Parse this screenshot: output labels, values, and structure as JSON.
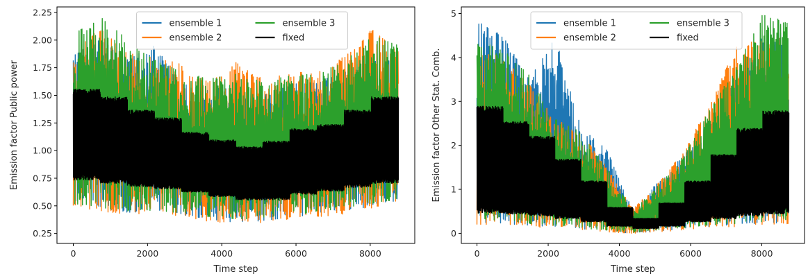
{
  "chart_data": [
    {
      "type": "line",
      "xlabel": "Time step",
      "ylabel": "Emission factor Public power",
      "xlim": [
        -440,
        9200
      ],
      "ylim": [
        0.16,
        2.3
      ],
      "xticks": [
        0,
        2000,
        4000,
        6000,
        8000
      ],
      "xtick_labels": [
        "0",
        "2000",
        "4000",
        "6000",
        "8000"
      ],
      "yticks": [
        0.25,
        0.5,
        0.75,
        1.0,
        1.25,
        1.5,
        1.75,
        2.0,
        2.25
      ],
      "ytick_labels": [
        "0.25",
        "0.50",
        "0.75",
        "1.00",
        "1.25",
        "1.50",
        "1.75",
        "2.00",
        "2.25"
      ],
      "grid": false,
      "legend": {
        "placement": "upper center",
        "columns": 2,
        "entries": [
          "ensemble 1",
          "ensemble 2",
          "ensemble 3",
          "fixed"
        ]
      },
      "series": [
        {
          "name": "ensemble 1",
          "color": "#1f77b4",
          "envelope": {
            "x": [
              0,
              730,
              1460,
              2190,
              2920,
              3650,
              4380,
              5110,
              5840,
              6570,
              7300,
              8030,
              8760
            ],
            "low": [
              0.5,
              0.48,
              0.44,
              0.45,
              0.42,
              0.38,
              0.35,
              0.36,
              0.4,
              0.42,
              0.44,
              0.5,
              0.55
            ],
            "high": [
              1.9,
              2.0,
              1.85,
              1.95,
              1.6,
              1.58,
              1.55,
              1.5,
              1.6,
              1.62,
              1.72,
              1.8,
              1.85
            ]
          }
        },
        {
          "name": "ensemble 2",
          "color": "#ff7f0e",
          "envelope": {
            "x": [
              0,
              730,
              1460,
              2190,
              2920,
              3650,
              4380,
              5110,
              5840,
              6570,
              7300,
              8030,
              8760
            ],
            "low": [
              0.5,
              0.45,
              0.42,
              0.44,
              0.4,
              0.36,
              0.33,
              0.35,
              0.38,
              0.4,
              0.42,
              0.48,
              0.54
            ],
            "high": [
              1.92,
              2.1,
              1.9,
              1.85,
              1.78,
              1.62,
              1.8,
              1.65,
              1.7,
              1.72,
              1.85,
              2.1,
              1.9
            ]
          }
        },
        {
          "name": "ensemble 3",
          "color": "#2ca02c",
          "envelope": {
            "x": [
              0,
              730,
              1460,
              2190,
              2920,
              3650,
              4380,
              5110,
              5840,
              6570,
              7300,
              8030,
              8760
            ],
            "low": [
              0.52,
              0.48,
              0.45,
              0.46,
              0.43,
              0.4,
              0.38,
              0.38,
              0.42,
              0.44,
              0.46,
              0.52,
              0.56
            ],
            "high": [
              2.05,
              2.22,
              2.0,
              1.82,
              1.72,
              1.65,
              1.7,
              1.62,
              1.68,
              1.7,
              1.8,
              2.05,
              1.95
            ]
          }
        },
        {
          "name": "fixed",
          "color": "#000000",
          "steps": {
            "x": [
              0,
              730,
              1460,
              2190,
              2920,
              3650,
              4380,
              5110,
              5840,
              6570,
              7300,
              8030,
              8760
            ],
            "low": [
              0.73,
              0.7,
              0.67,
              0.65,
              0.62,
              0.58,
              0.55,
              0.55,
              0.6,
              0.63,
              0.66,
              0.7,
              0.72
            ],
            "high": [
              1.56,
              1.49,
              1.37,
              1.3,
              1.17,
              1.1,
              1.04,
              1.09,
              1.2,
              1.24,
              1.37,
              1.49,
              1.49
            ]
          }
        }
      ]
    },
    {
      "type": "line",
      "xlabel": "Time step",
      "ylabel": "Emission factor Other Stat. Comb.",
      "xlim": [
        -440,
        9200
      ],
      "ylim": [
        -0.23,
        5.15
      ],
      "xticks": [
        0,
        2000,
        4000,
        6000,
        8000
      ],
      "xtick_labels": [
        "0",
        "2000",
        "4000",
        "6000",
        "8000"
      ],
      "yticks": [
        0,
        1,
        2,
        3,
        4,
        5
      ],
      "ytick_labels": [
        "0",
        "1",
        "2",
        "3",
        "4",
        "5"
      ],
      "grid": false,
      "legend": {
        "placement": "upper center",
        "columns": 2,
        "entries": [
          "ensemble 1",
          "ensemble 2",
          "ensemble 3",
          "fixed"
        ]
      },
      "series": [
        {
          "name": "ensemble 1",
          "color": "#1f77b4",
          "envelope": {
            "x": [
              0,
              730,
              1460,
              2190,
              2920,
              3650,
              4380,
              5110,
              5840,
              6570,
              7300,
              8030,
              8760
            ],
            "low": [
              0.25,
              0.22,
              0.18,
              0.15,
              0.1,
              0.05,
              0.0,
              0.05,
              0.1,
              0.15,
              0.2,
              0.22,
              0.25
            ],
            "high": [
              4.9,
              4.5,
              3.5,
              4.5,
              2.4,
              1.9,
              0.5,
              1.2,
              1.8,
              2.6,
              3.6,
              4.5,
              4.6
            ]
          }
        },
        {
          "name": "ensemble 2",
          "color": "#ff7f0e",
          "envelope": {
            "x": [
              0,
              730,
              1460,
              2190,
              2920,
              3650,
              4380,
              5110,
              5840,
              6570,
              7300,
              8030,
              8760
            ],
            "low": [
              0.2,
              0.2,
              0.15,
              0.12,
              0.08,
              0.03,
              0.0,
              0.03,
              0.08,
              0.12,
              0.15,
              0.2,
              0.22
            ],
            "high": [
              4.2,
              4.0,
              3.4,
              2.6,
              2.3,
              1.5,
              0.55,
              1.15,
              1.9,
              3.0,
              4.3,
              4.4,
              4.5
            ]
          }
        },
        {
          "name": "ensemble 3",
          "color": "#2ca02c",
          "envelope": {
            "x": [
              0,
              730,
              1460,
              2190,
              2920,
              3650,
              4380,
              5110,
              5840,
              6570,
              7300,
              8030,
              8760
            ],
            "low": [
              0.3,
              0.28,
              0.22,
              0.18,
              0.12,
              0.06,
              0.02,
              0.06,
              0.12,
              0.18,
              0.22,
              0.26,
              0.3
            ],
            "high": [
              4.4,
              4.2,
              3.6,
              2.6,
              2.3,
              1.5,
              0.5,
              1.1,
              1.8,
              2.9,
              3.8,
              5.0,
              4.8
            ]
          }
        },
        {
          "name": "fixed",
          "color": "#000000",
          "steps": {
            "x": [
              0,
              730,
              1460,
              2190,
              2920,
              3650,
              4380,
              5110,
              5840,
              6570,
              7300,
              8030,
              8760
            ],
            "low": [
              0.45,
              0.42,
              0.38,
              0.32,
              0.25,
              0.15,
              0.1,
              0.15,
              0.25,
              0.32,
              0.38,
              0.43,
              0.45
            ],
            "high": [
              2.9,
              2.55,
              2.22,
              1.7,
              1.2,
              0.6,
              0.35,
              0.7,
              1.2,
              1.8,
              2.4,
              2.8,
              2.8
            ]
          }
        }
      ]
    }
  ]
}
